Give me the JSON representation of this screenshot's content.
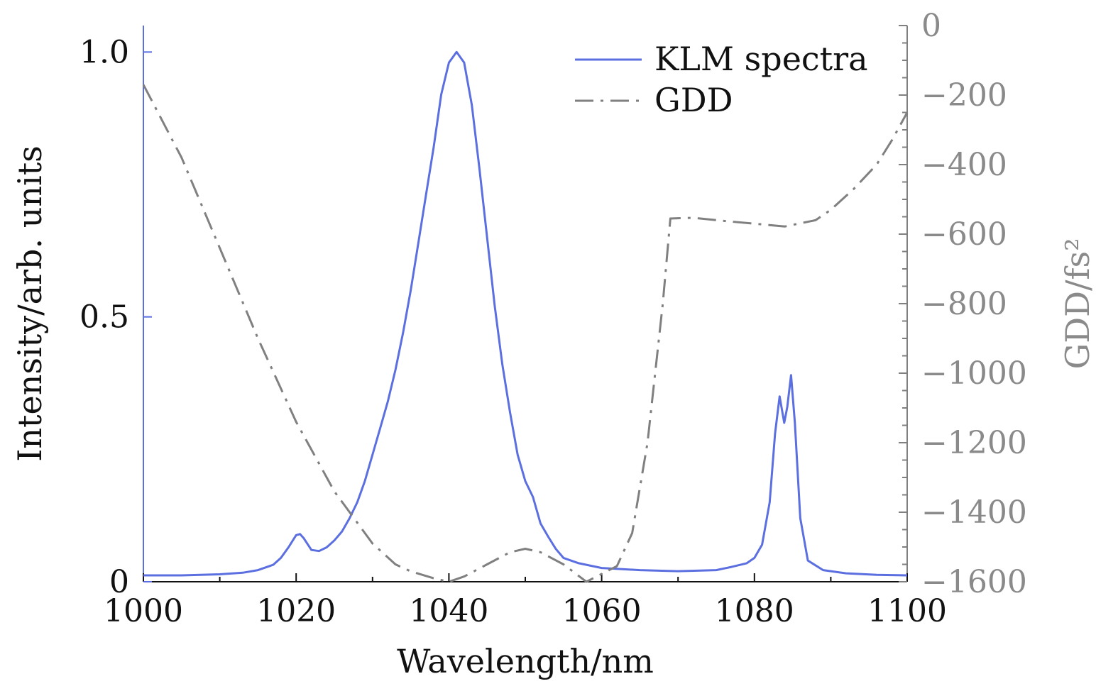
{
  "chart_data": {
    "type": "line",
    "xlabel": "Wavelength/nm",
    "ylabel_left": "Intensity/arb. units",
    "ylabel_right": "GDD/fs²",
    "xlim": [
      1000,
      1100
    ],
    "ylim_left": [
      0,
      1.05
    ],
    "ylim_right": [
      -1600,
      0
    ],
    "x_ticks": [
      "1000",
      "1020",
      "1040",
      "1060",
      "1080",
      "1100"
    ],
    "y_left_ticks": [
      {
        "value": 0,
        "label": "0"
      },
      {
        "value": 0.5,
        "label": "0.5"
      },
      {
        "value": 1.0,
        "label": "1.0"
      }
    ],
    "y_right_ticks": [
      {
        "value": 0,
        "label": "0"
      },
      {
        "value": -200,
        "label": "−200"
      },
      {
        "value": -400,
        "label": "−400"
      },
      {
        "value": -600,
        "label": "−600"
      },
      {
        "value": -800,
        "label": "−800"
      },
      {
        "value": -1000,
        "label": "−1000"
      },
      {
        "value": -1200,
        "label": "−1200"
      },
      {
        "value": -1400,
        "label": "−1400"
      },
      {
        "value": -1600,
        "label": "−1600"
      }
    ],
    "grid": false,
    "legend_position": "top-right",
    "series": [
      {
        "name": "KLM spectra",
        "axis": "left",
        "color": "#5b6fe0",
        "style": "solid",
        "points": [
          [
            1000,
            0.012
          ],
          [
            1005,
            0.012
          ],
          [
            1010,
            0.014
          ],
          [
            1013,
            0.017
          ],
          [
            1015,
            0.022
          ],
          [
            1017,
            0.032
          ],
          [
            1018,
            0.045
          ],
          [
            1019,
            0.065
          ],
          [
            1020,
            0.088
          ],
          [
            1020.5,
            0.09
          ],
          [
            1021,
            0.082
          ],
          [
            1022,
            0.06
          ],
          [
            1023,
            0.058
          ],
          [
            1024,
            0.065
          ],
          [
            1025,
            0.078
          ],
          [
            1026,
            0.095
          ],
          [
            1027,
            0.12
          ],
          [
            1028,
            0.15
          ],
          [
            1029,
            0.19
          ],
          [
            1030,
            0.24
          ],
          [
            1031,
            0.29
          ],
          [
            1032,
            0.34
          ],
          [
            1033,
            0.4
          ],
          [
            1034,
            0.47
          ],
          [
            1035,
            0.55
          ],
          [
            1036,
            0.64
          ],
          [
            1037,
            0.73
          ],
          [
            1038,
            0.82
          ],
          [
            1039,
            0.92
          ],
          [
            1040,
            0.98
          ],
          [
            1041,
            1.0
          ],
          [
            1042,
            0.98
          ],
          [
            1043,
            0.9
          ],
          [
            1044,
            0.78
          ],
          [
            1045,
            0.65
          ],
          [
            1046,
            0.52
          ],
          [
            1047,
            0.41
          ],
          [
            1048,
            0.32
          ],
          [
            1049,
            0.24
          ],
          [
            1050,
            0.19
          ],
          [
            1051,
            0.16
          ],
          [
            1052,
            0.11
          ],
          [
            1053,
            0.085
          ],
          [
            1054,
            0.062
          ],
          [
            1055,
            0.045
          ],
          [
            1057,
            0.035
          ],
          [
            1060,
            0.026
          ],
          [
            1065,
            0.022
          ],
          [
            1070,
            0.02
          ],
          [
            1075,
            0.022
          ],
          [
            1077,
            0.028
          ],
          [
            1079,
            0.035
          ],
          [
            1080,
            0.045
          ],
          [
            1081,
            0.07
          ],
          [
            1082,
            0.15
          ],
          [
            1082.7,
            0.28
          ],
          [
            1083.3,
            0.35
          ],
          [
            1083.9,
            0.3
          ],
          [
            1084.3,
            0.33
          ],
          [
            1084.8,
            0.39
          ],
          [
            1085.3,
            0.3
          ],
          [
            1086,
            0.12
          ],
          [
            1087,
            0.04
          ],
          [
            1089,
            0.022
          ],
          [
            1092,
            0.016
          ],
          [
            1096,
            0.013
          ],
          [
            1100,
            0.012
          ]
        ]
      },
      {
        "name": "GDD",
        "axis": "right",
        "color": "#808080",
        "style": "dash-dot",
        "points": [
          [
            1000,
            -170
          ],
          [
            1005,
            -380
          ],
          [
            1010,
            -640
          ],
          [
            1015,
            -900
          ],
          [
            1020,
            -1140
          ],
          [
            1025,
            -1340
          ],
          [
            1030,
            -1490
          ],
          [
            1033,
            -1550
          ],
          [
            1035,
            -1570
          ],
          [
            1038,
            -1590
          ],
          [
            1040,
            -1600
          ],
          [
            1042,
            -1585
          ],
          [
            1045,
            -1550
          ],
          [
            1048,
            -1515
          ],
          [
            1050,
            -1505
          ],
          [
            1052,
            -1515
          ],
          [
            1055,
            -1550
          ],
          [
            1058,
            -1600
          ],
          [
            1062,
            -1555
          ],
          [
            1064,
            -1460
          ],
          [
            1066,
            -1200
          ],
          [
            1068,
            -800
          ],
          [
            1069,
            -555
          ],
          [
            1072,
            -553
          ],
          [
            1076,
            -562
          ],
          [
            1080,
            -570
          ],
          [
            1084,
            -578
          ],
          [
            1088,
            -560
          ],
          [
            1090,
            -530
          ],
          [
            1093,
            -470
          ],
          [
            1096,
            -400
          ],
          [
            1098,
            -330
          ],
          [
            1100,
            -250
          ]
        ]
      }
    ]
  }
}
